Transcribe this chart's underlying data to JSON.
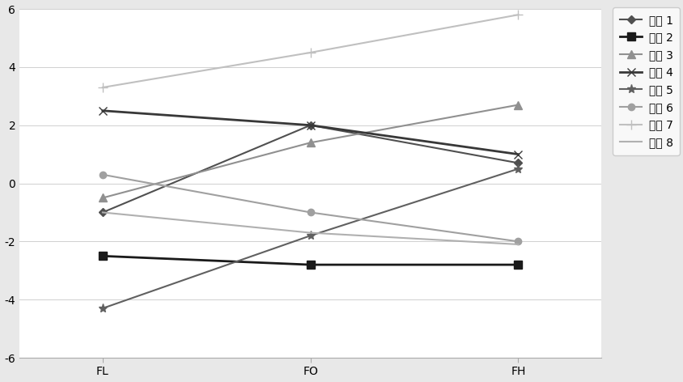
{
  "x_labels": [
    "FL",
    "FO",
    "FH"
  ],
  "channels": [
    {
      "name": "通道 1",
      "values": [
        -1.0,
        2.0,
        0.7
      ],
      "color": "#505050",
      "marker": "D",
      "markersize": 5,
      "linewidth": 1.5,
      "linestyle": "-"
    },
    {
      "name": "通道 2",
      "values": [
        -2.5,
        -2.8,
        -2.8
      ],
      "color": "#1a1a1a",
      "marker": "s",
      "markersize": 7,
      "linewidth": 2.0,
      "linestyle": "-"
    },
    {
      "name": "通道 3",
      "values": [
        -0.5,
        1.4,
        2.7
      ],
      "color": "#909090",
      "marker": "^",
      "markersize": 7,
      "linewidth": 1.5,
      "linestyle": "-"
    },
    {
      "name": "通道 4",
      "values": [
        2.5,
        2.0,
        1.0
      ],
      "color": "#383838",
      "marker": "x",
      "markersize": 7,
      "linewidth": 2.0,
      "linestyle": "-"
    },
    {
      "name": "通道 5",
      "values": [
        -4.3,
        -1.8,
        0.5
      ],
      "color": "#606060",
      "marker": "*",
      "markersize": 8,
      "linewidth": 1.5,
      "linestyle": "-"
    },
    {
      "name": "通道 6",
      "values": [
        0.3,
        -1.0,
        -2.0
      ],
      "color": "#a0a0a0",
      "marker": "o",
      "markersize": 6,
      "linewidth": 1.5,
      "linestyle": "-"
    },
    {
      "name": "通道 7",
      "values": [
        3.3,
        4.5,
        5.8
      ],
      "color": "#c0c0c0",
      "marker": "+",
      "markersize": 9,
      "linewidth": 1.5,
      "linestyle": "-"
    },
    {
      "name": "通道 8",
      "values": [
        -1.0,
        -1.7,
        -2.1
      ],
      "color": "#b0b0b0",
      "marker": "None",
      "markersize": 0,
      "linewidth": 1.5,
      "linestyle": "-"
    }
  ],
  "ylim": [
    -6,
    6
  ],
  "yticks": [
    -6,
    -4,
    -2,
    0,
    2,
    4,
    6
  ],
  "background_color": "#e8e8e8",
  "plot_bg_color": "#ffffff",
  "grid_color": "#d0d0d0",
  "legend_bg_color": "#f8f8f8",
  "legend_fontsize": 10,
  "tick_fontsize": 10
}
